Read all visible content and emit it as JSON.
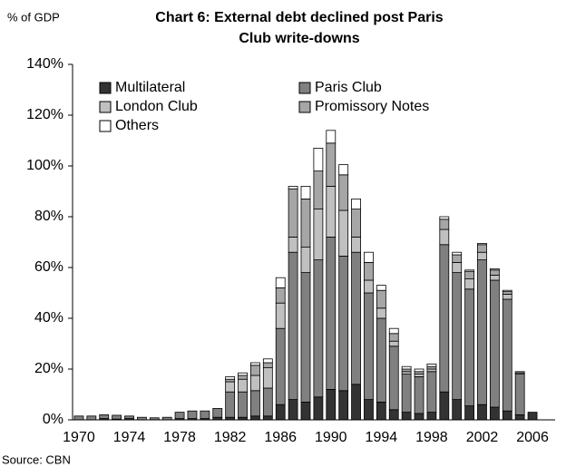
{
  "chart_data": {
    "type": "stacked_bar",
    "title": [
      "Chart 6: External debt declined post Paris",
      "Club write-downs"
    ],
    "y_label": "% of GDP",
    "source": "Source: CBN",
    "categories": [
      "1970",
      null,
      null,
      null,
      "1974",
      null,
      null,
      null,
      "1978",
      null,
      null,
      null,
      "1982",
      null,
      null,
      null,
      "1986",
      null,
      null,
      null,
      "1990",
      null,
      null,
      null,
      "1994",
      null,
      null,
      null,
      "1998",
      null,
      null,
      null,
      "2002",
      null,
      null,
      null,
      "2006"
    ],
    "series": [
      {
        "name": "Multilateral",
        "color": "#333333",
        "values": [
          0,
          0,
          0.5,
          0.3,
          0.5,
          0,
          0,
          0,
          0.5,
          0.5,
          0.5,
          1,
          1,
          1,
          1.5,
          1.5,
          6,
          8,
          7,
          9,
          12,
          11.5,
          14,
          8,
          7,
          4,
          3,
          2.5,
          3,
          11,
          8,
          5.5,
          6,
          5,
          3.5,
          2,
          3
        ]
      },
      {
        "name": "Paris Club",
        "color": "#808080",
        "values": [
          1.5,
          1.5,
          1.5,
          1.5,
          1,
          1,
          0.8,
          1,
          2.5,
          3,
          3,
          3.5,
          10,
          10,
          10,
          11,
          30,
          58,
          51,
          54,
          60,
          53,
          52,
          42,
          33,
          25,
          15,
          14.5,
          16,
          58,
          50,
          46,
          57,
          50,
          44,
          16,
          0
        ]
      },
      {
        "name": "London Club",
        "color": "#c0c0c0",
        "values": [
          0,
          0,
          0,
          0,
          0,
          0,
          0,
          0,
          0,
          0,
          0,
          0,
          4,
          5,
          6,
          8,
          10,
          6,
          10,
          20,
          20,
          18,
          6,
          5,
          4,
          2,
          1,
          1,
          1,
          6,
          4,
          4,
          3,
          2,
          2,
          0.5,
          0
        ]
      },
      {
        "name": "Promissory Notes",
        "color": "#a6a6a6",
        "values": [
          0,
          0,
          0,
          0,
          0,
          0,
          0,
          0,
          0,
          0,
          0,
          0,
          1,
          1.5,
          4,
          2,
          6,
          19,
          19,
          15,
          17,
          14,
          11,
          7,
          7,
          3,
          1,
          1,
          1,
          4,
          3,
          3,
          3,
          2,
          1,
          0.5,
          0
        ]
      },
      {
        "name": "Others",
        "color": "#ffffff",
        "values": [
          0,
          0,
          0,
          0,
          0,
          0,
          0,
          0,
          0,
          0,
          0,
          0,
          1,
          1,
          1,
          1.5,
          4,
          1,
          5,
          9,
          5,
          4,
          4,
          4,
          2,
          2,
          1,
          1,
          1,
          1,
          1,
          0.5,
          0.5,
          0.5,
          0.5,
          0,
          0
        ]
      }
    ],
    "ylim": [
      0,
      140
    ],
    "yticks": [
      {
        "value": 0,
        "label": "0%"
      },
      {
        "value": 20,
        "label": "20%"
      },
      {
        "value": 40,
        "label": "40%"
      },
      {
        "value": 60,
        "label": "60%"
      },
      {
        "value": 80,
        "label": "80%"
      },
      {
        "value": 100,
        "label": "100%"
      },
      {
        "value": 120,
        "label": "120%"
      },
      {
        "value": 140,
        "label": "140%"
      }
    ]
  }
}
